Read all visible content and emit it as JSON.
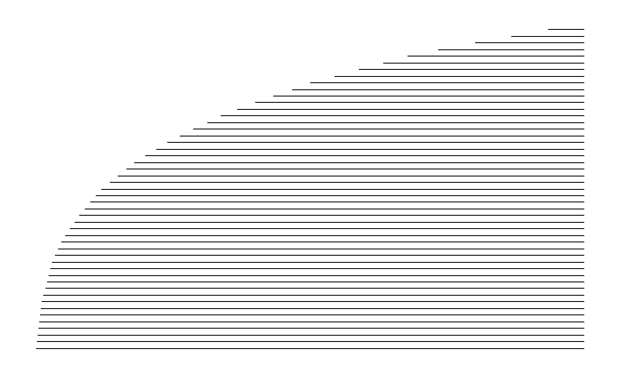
{
  "chart_data": {
    "type": "line",
    "color": "#000000",
    "line_style": "solid",
    "tick_labels": false,
    "grid": false,
    "xlim": [
      0,
      100
    ],
    "ylim": [
      0,
      100
    ],
    "xticks": [],
    "yticks": [],
    "series": [
      {
        "x": [
          0.13,
          100
        ],
        "values": [
          2,
          2
        ]
      },
      {
        "x": [
          0.27,
          100
        ],
        "values": [
          4,
          4
        ]
      },
      {
        "x": [
          0.4,
          100
        ],
        "values": [
          6,
          6
        ]
      },
      {
        "x": [
          0.53,
          100
        ],
        "values": [
          8,
          8
        ]
      },
      {
        "x": [
          0.67,
          100
        ],
        "values": [
          10,
          10
        ]
      },
      {
        "x": [
          0.8,
          100
        ],
        "values": [
          12,
          12
        ]
      },
      {
        "x": [
          0.93,
          100
        ],
        "values": [
          14,
          14
        ]
      },
      {
        "x": [
          1.15,
          100
        ],
        "values": [
          16,
          16
        ]
      },
      {
        "x": [
          1.46,
          100
        ],
        "values": [
          18,
          18
        ]
      },
      {
        "x": [
          1.77,
          100
        ],
        "values": [
          20,
          20
        ]
      },
      {
        "x": [
          2.08,
          100
        ],
        "values": [
          22,
          22
        ]
      },
      {
        "x": [
          2.38,
          100
        ],
        "values": [
          24,
          24
        ]
      },
      {
        "x": [
          2.69,
          100
        ],
        "values": [
          26,
          26
        ]
      },
      {
        "x": [
          3.0,
          100
        ],
        "values": [
          28,
          28
        ]
      },
      {
        "x": [
          3.57,
          100
        ],
        "values": [
          30,
          30
        ]
      },
      {
        "x": [
          4.14,
          100
        ],
        "values": [
          32,
          32
        ]
      },
      {
        "x": [
          4.71,
          100
        ],
        "values": [
          34,
          34
        ]
      },
      {
        "x": [
          5.43,
          100
        ],
        "values": [
          36,
          36
        ]
      },
      {
        "x": [
          6.29,
          100
        ],
        "values": [
          38,
          38
        ]
      },
      {
        "x": [
          7.14,
          100
        ],
        "values": [
          40,
          40
        ]
      },
      {
        "x": [
          8.0,
          100
        ],
        "values": [
          42,
          42
        ]
      },
      {
        "x": [
          9.0,
          100
        ],
        "values": [
          44,
          44
        ]
      },
      {
        "x": [
          10.0,
          100
        ],
        "values": [
          46,
          46
        ]
      },
      {
        "x": [
          11.0,
          100
        ],
        "values": [
          48,
          48
        ]
      },
      {
        "x": [
          12.0,
          100
        ],
        "values": [
          50,
          50
        ]
      },
      {
        "x": [
          13.5,
          100
        ],
        "values": [
          52,
          52
        ]
      },
      {
        "x": [
          15.0,
          100
        ],
        "values": [
          54,
          54
        ]
      },
      {
        "x": [
          16.5,
          100
        ],
        "values": [
          56,
          56
        ]
      },
      {
        "x": [
          18.0,
          100
        ],
        "values": [
          58,
          58
        ]
      },
      {
        "x": [
          20.0,
          100
        ],
        "values": [
          60,
          60
        ]
      },
      {
        "x": [
          22.0,
          100
        ],
        "values": [
          62,
          62
        ]
      },
      {
        "x": [
          24.0,
          100
        ],
        "values": [
          64,
          64
        ]
      },
      {
        "x": [
          26.25,
          100
        ],
        "values": [
          66,
          66
        ]
      },
      {
        "x": [
          28.75,
          100
        ],
        "values": [
          68,
          68
        ]
      },
      {
        "x": [
          31.25,
          100
        ],
        "values": [
          70,
          70
        ]
      },
      {
        "x": [
          33.75,
          100
        ],
        "values": [
          72,
          72
        ]
      },
      {
        "x": [
          36.67,
          100
        ],
        "values": [
          74,
          74
        ]
      },
      {
        "x": [
          40.0,
          100
        ],
        "values": [
          76,
          76
        ]
      },
      {
        "x": [
          43.33,
          100
        ],
        "values": [
          78,
          78
        ]
      },
      {
        "x": [
          46.67,
          100
        ],
        "values": [
          80,
          80
        ]
      },
      {
        "x": [
          50.0,
          100
        ],
        "values": [
          82,
          82
        ]
      },
      {
        "x": [
          54.44,
          100
        ],
        "values": [
          84,
          84
        ]
      },
      {
        "x": [
          58.89,
          100
        ],
        "values": [
          86,
          86
        ]
      },
      {
        "x": [
          63.33,
          100
        ],
        "values": [
          88,
          88
        ]
      },
      {
        "x": [
          67.78,
          100
        ],
        "values": [
          90,
          90
        ]
      },
      {
        "x": [
          73.33,
          100
        ],
        "values": [
          92,
          92
        ]
      },
      {
        "x": [
          80.0,
          100
        ],
        "values": [
          94,
          94
        ]
      },
      {
        "x": [
          86.67,
          100
        ],
        "values": [
          96,
          96
        ]
      },
      {
        "x": [
          93.33,
          100
        ],
        "values": [
          98,
          98
        ]
      }
    ]
  }
}
